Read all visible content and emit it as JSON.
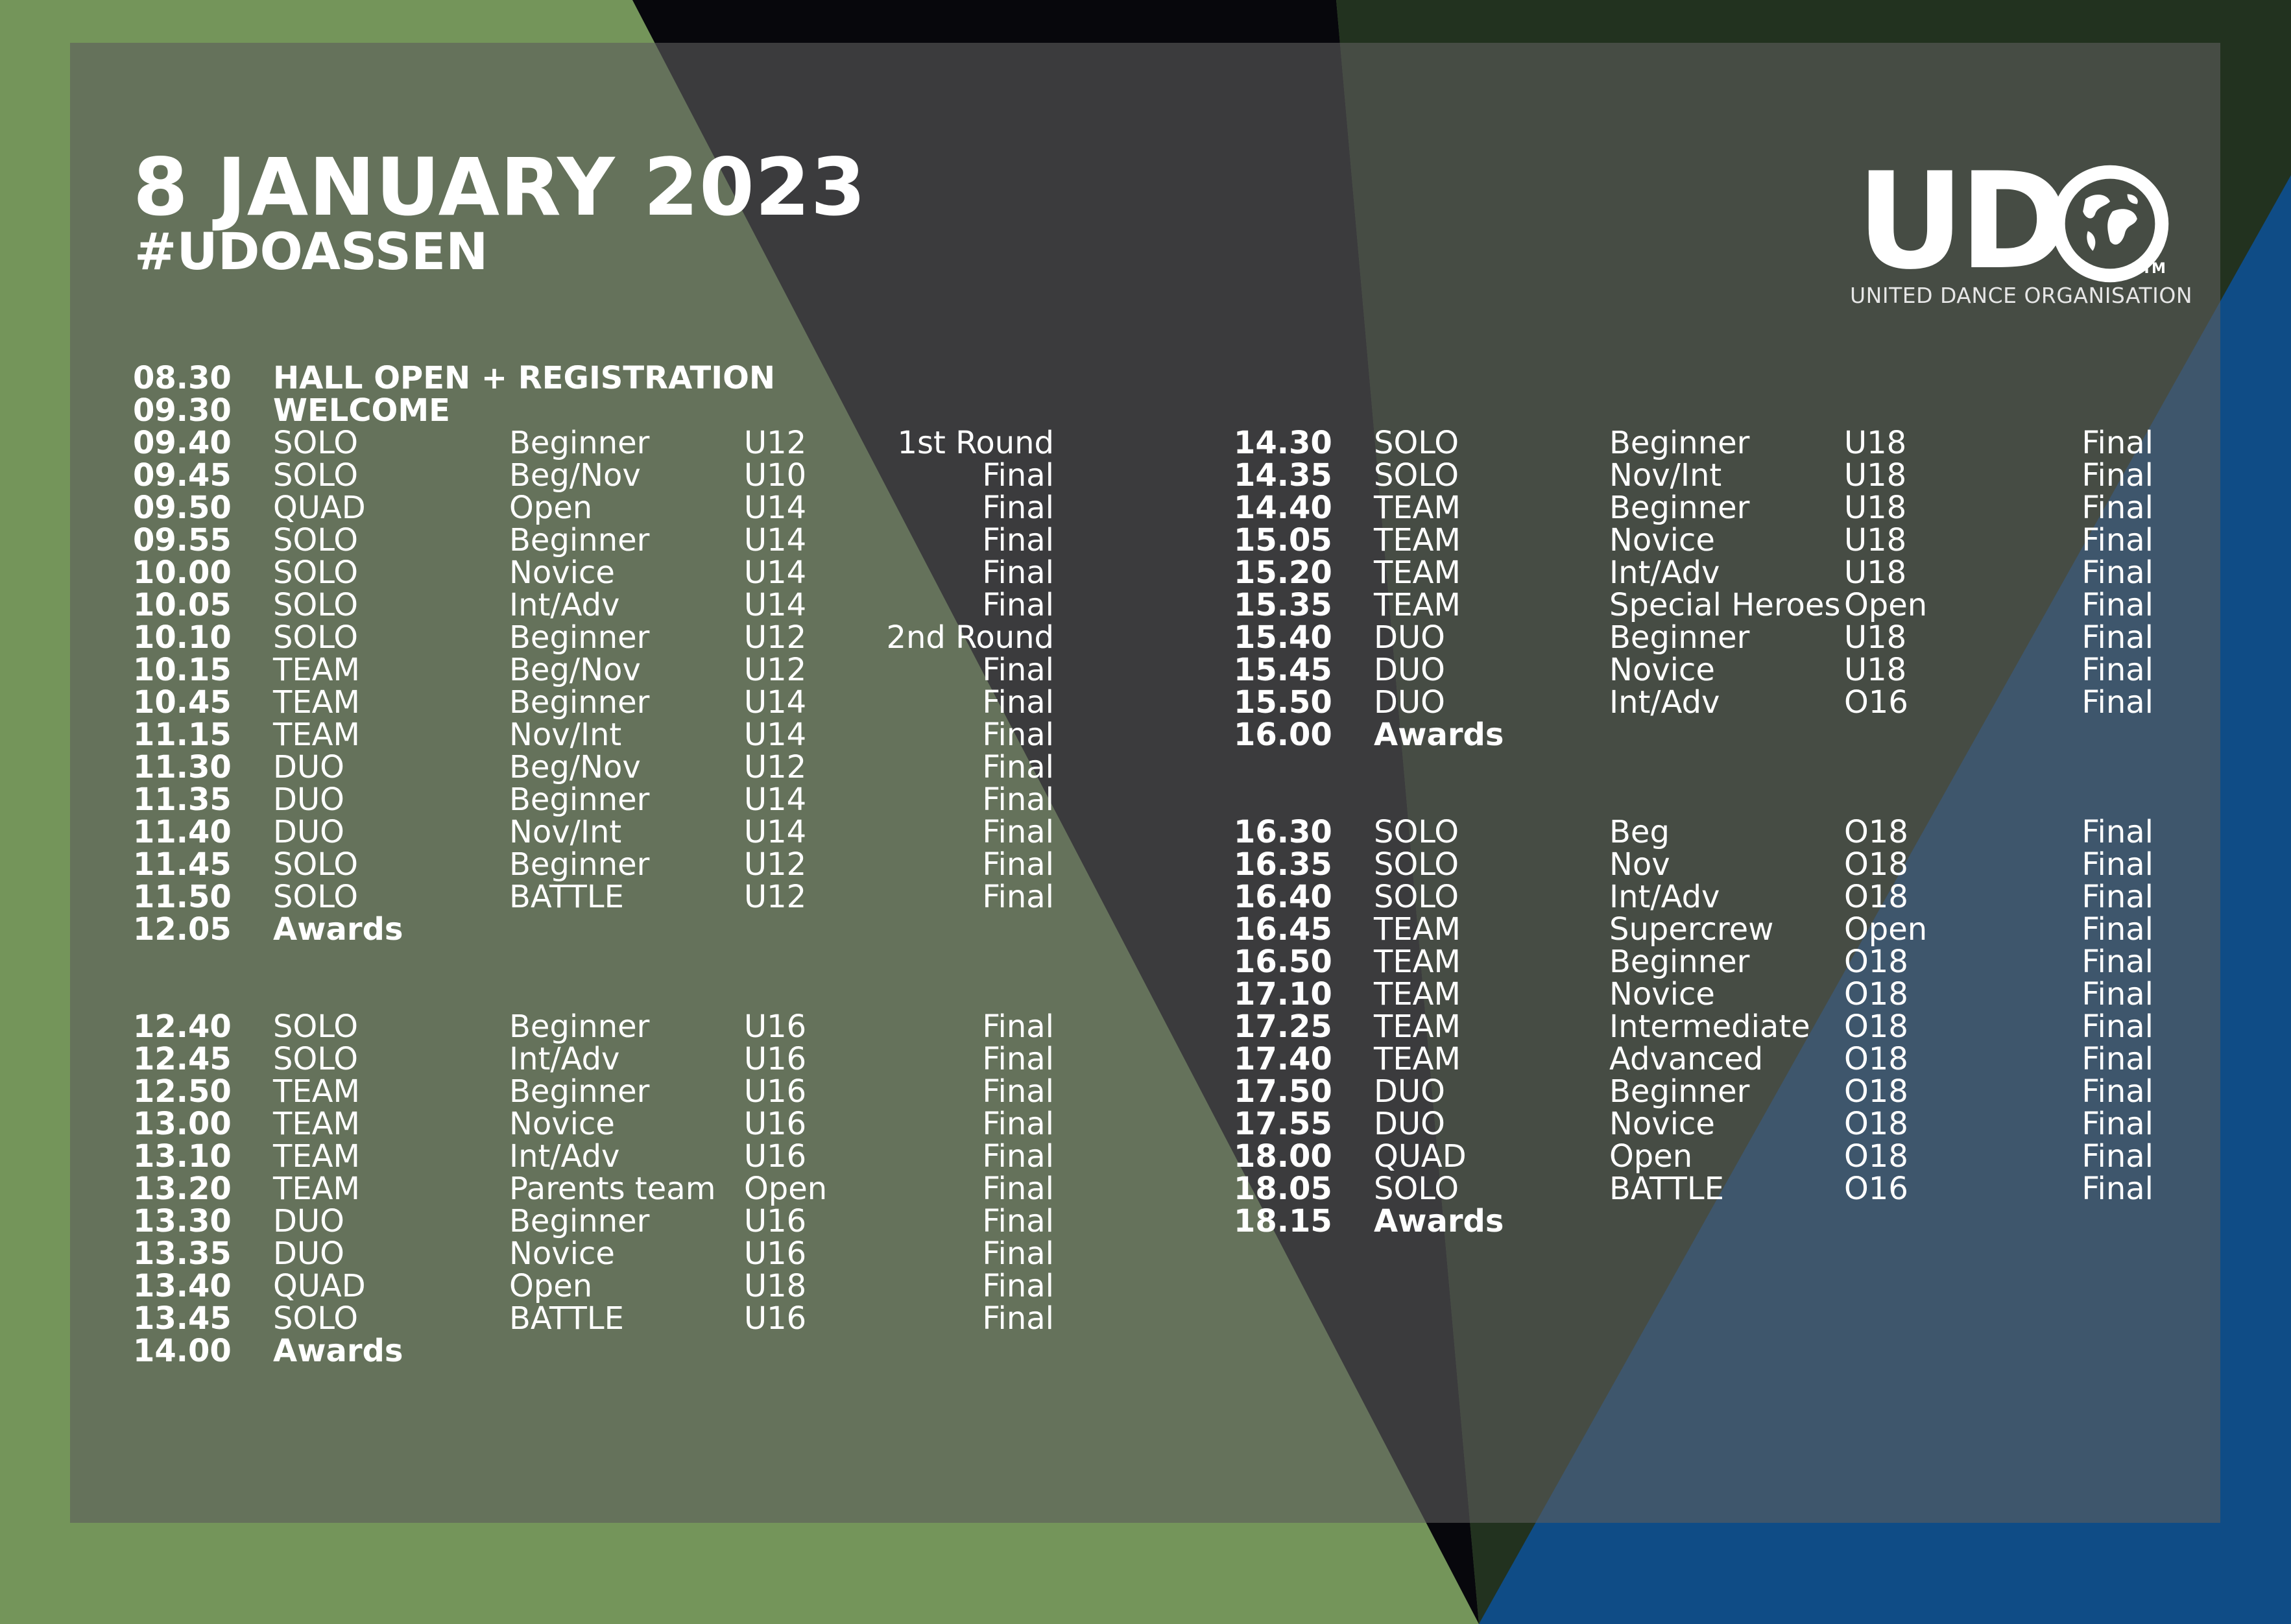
{
  "colors": {
    "green": "#74955a",
    "black": "#0a0a10",
    "dark_green": "#22321f",
    "blue": "#0f4c86",
    "panel": "#5f5f5f",
    "text": "#ffffff"
  },
  "header": {
    "date": "8 JANUARY 2023",
    "hashtag": "#UDOASSEN"
  },
  "logo": {
    "wordmark": "UDO",
    "trademark": "TM",
    "subtitle": "UNITED DANCE ORGANISATION",
    "globe_icon": "globe-icon"
  },
  "left_schedule": [
    {
      "time": "08.30",
      "style": "HALL OPEN + REGISTRATION",
      "level": "",
      "age": "",
      "round": "",
      "bold": true
    },
    {
      "time": "09.30",
      "style": "WELCOME",
      "level": "",
      "age": "",
      "round": "",
      "bold": true
    },
    {
      "time": "09.40",
      "style": "SOLO",
      "level": "Beginner",
      "age": "U12",
      "round": "1st Round"
    },
    {
      "time": "09.45",
      "style": "SOLO",
      "level": "Beg/Nov",
      "age": "U10",
      "round": "Final"
    },
    {
      "time": "09.50",
      "style": "QUAD",
      "level": "Open",
      "age": "U14",
      "round": "Final"
    },
    {
      "time": "09.55",
      "style": "SOLO",
      "level": "Beginner",
      "age": "U14",
      "round": "Final"
    },
    {
      "time": "10.00",
      "style": "SOLO",
      "level": "Novice",
      "age": "U14",
      "round": "Final"
    },
    {
      "time": "10.05",
      "style": "SOLO",
      "level": "Int/Adv",
      "age": "U14",
      "round": "Final"
    },
    {
      "time": "10.10",
      "style": "SOLO",
      "level": "Beginner",
      "age": "U12",
      "round": "2nd Round"
    },
    {
      "time": "10.15",
      "style": "TEAM",
      "level": "Beg/Nov",
      "age": "U12",
      "round": "Final"
    },
    {
      "time": "10.45",
      "style": "TEAM",
      "level": "Beginner",
      "age": "U14",
      "round": "Final"
    },
    {
      "time": "11.15",
      "style": "TEAM",
      "level": "Nov/Int",
      "age": "U14",
      "round": "Final"
    },
    {
      "time": "11.30",
      "style": "DUO",
      "level": "Beg/Nov",
      "age": "U12",
      "round": "Final"
    },
    {
      "time": "11.35",
      "style": "DUO",
      "level": "Beginner",
      "age": "U14",
      "round": "Final"
    },
    {
      "time": "11.40",
      "style": "DUO",
      "level": "Nov/Int",
      "age": "U14",
      "round": "Final"
    },
    {
      "time": "11.45",
      "style": "SOLO",
      "level": "Beginner",
      "age": "U12",
      "round": "Final"
    },
    {
      "time": "11.50",
      "style": "SOLO",
      "level": "BATTLE",
      "age": "U12",
      "round": "Final"
    },
    {
      "time": "12.05",
      "style": "Awards",
      "level": "",
      "age": "",
      "round": "",
      "bold": true
    },
    {
      "time": "12.40",
      "style": "SOLO",
      "level": "Beginner",
      "age": "U16",
      "round": "Final",
      "gap": true
    },
    {
      "time": "12.45",
      "style": "SOLO",
      "level": "Int/Adv",
      "age": "U16",
      "round": "Final"
    },
    {
      "time": "12.50",
      "style": "TEAM",
      "level": "Beginner",
      "age": "U16",
      "round": "Final"
    },
    {
      "time": "13.00",
      "style": "TEAM",
      "level": "Novice",
      "age": "U16",
      "round": "Final"
    },
    {
      "time": "13.10",
      "style": "TEAM",
      "level": "Int/Adv",
      "age": "U16",
      "round": "Final"
    },
    {
      "time": "13.20",
      "style": "TEAM",
      "level": "Parents team",
      "age": "Open",
      "round": "Final"
    },
    {
      "time": "13.30",
      "style": "DUO",
      "level": "Beginner",
      "age": "U16",
      "round": "Final"
    },
    {
      "time": "13.35",
      "style": "DUO",
      "level": "Novice",
      "age": "U16",
      "round": "Final"
    },
    {
      "time": "13.40",
      "style": "QUAD",
      "level": "Open",
      "age": "U18",
      "round": "Final"
    },
    {
      "time": "13.45",
      "style": "SOLO",
      "level": "BATTLE",
      "age": "U16",
      "round": "Final"
    },
    {
      "time": "14.00",
      "style": "Awards",
      "level": "",
      "age": "",
      "round": "",
      "bold": true
    }
  ],
  "right_schedule": [
    {
      "time": "14.30",
      "style": "SOLO",
      "level": "Beginner",
      "age": "U18",
      "round": "Final"
    },
    {
      "time": "14.35",
      "style": "SOLO",
      "level": "Nov/Int",
      "age": "U18",
      "round": "Final"
    },
    {
      "time": "14.40",
      "style": "TEAM",
      "level": "Beginner",
      "age": "U18",
      "round": "Final"
    },
    {
      "time": "15.05",
      "style": "TEAM",
      "level": "Novice",
      "age": "U18",
      "round": "Final"
    },
    {
      "time": "15.20",
      "style": "TEAM",
      "level": "Int/Adv",
      "age": "U18",
      "round": "Final"
    },
    {
      "time": "15.35",
      "style": "TEAM",
      "level": "Special Heroes",
      "age": "Open",
      "round": "Final"
    },
    {
      "time": "15.40",
      "style": "DUO",
      "level": "Beginner",
      "age": "U18",
      "round": "Final"
    },
    {
      "time": "15.45",
      "style": "DUO",
      "level": "Novice",
      "age": "U18",
      "round": "Final"
    },
    {
      "time": "15.50",
      "style": "DUO",
      "level": "Int/Adv",
      "age": "O16",
      "round": "Final"
    },
    {
      "time": "16.00",
      "style": "Awards",
      "level": "",
      "age": "",
      "round": "",
      "bold": true
    },
    {
      "time": "16.30",
      "style": "SOLO",
      "level": "Beg",
      "age": "O18",
      "round": "Final",
      "gap": true
    },
    {
      "time": "16.35",
      "style": "SOLO",
      "level": "Nov",
      "age": "O18",
      "round": "Final"
    },
    {
      "time": "16.40",
      "style": "SOLO",
      "level": "Int/Adv",
      "age": "O18",
      "round": "Final"
    },
    {
      "time": "16.45",
      "style": "TEAM",
      "level": "Supercrew",
      "age": "Open",
      "round": "Final"
    },
    {
      "time": "16.50",
      "style": "TEAM",
      "level": "Beginner",
      "age": "O18",
      "round": "Final"
    },
    {
      "time": "17.10",
      "style": "TEAM",
      "level": "Novice",
      "age": "O18",
      "round": "Final"
    },
    {
      "time": "17.25",
      "style": "TEAM",
      "level": "Intermediate",
      "age": "O18",
      "round": "Final"
    },
    {
      "time": "17.40",
      "style": "TEAM",
      "level": "Advanced",
      "age": "O18",
      "round": "Final"
    },
    {
      "time": "17.50",
      "style": "DUO",
      "level": "Beginner",
      "age": "O18",
      "round": "Final"
    },
    {
      "time": "17.55",
      "style": "DUO",
      "level": "Novice",
      "age": "O18",
      "round": "Final"
    },
    {
      "time": "18.00",
      "style": "QUAD",
      "level": "Open",
      "age": "O18",
      "round": "Final"
    },
    {
      "time": "18.05",
      "style": "SOLO",
      "level": "BATTLE",
      "age": "O16",
      "round": "Final"
    },
    {
      "time": "18.15",
      "style": "Awards",
      "level": "",
      "age": "",
      "round": "",
      "bold": true
    }
  ]
}
